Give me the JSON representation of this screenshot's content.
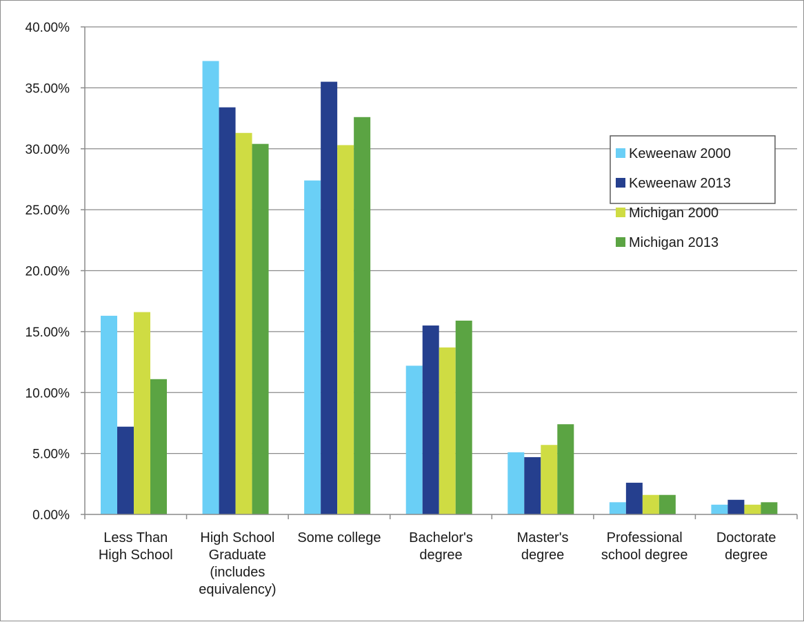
{
  "chart_data": {
    "type": "bar",
    "title": "",
    "xlabel": "",
    "ylabel": "",
    "categories": [
      [
        "Less Than",
        "High School"
      ],
      [
        "High School",
        "Graduate",
        "(includes",
        "equivalency)"
      ],
      [
        "Some college"
      ],
      [
        "Bachelor's",
        "degree"
      ],
      [
        "Master's",
        "degree"
      ],
      [
        "Professional",
        "school degree"
      ],
      [
        "Doctorate",
        "degree"
      ]
    ],
    "series": [
      {
        "name": "Keweenaw 2000",
        "color": "#6acff6",
        "values": [
          16.3,
          37.2,
          27.4,
          12.2,
          5.1,
          1.0,
          0.8
        ]
      },
      {
        "name": "Keweenaw 2013",
        "color": "#253f8e",
        "values": [
          7.2,
          33.4,
          35.5,
          15.5,
          4.7,
          2.6,
          1.2
        ]
      },
      {
        "name": "Michigan 2000",
        "color": "#cfdc43",
        "values": [
          16.6,
          31.3,
          30.3,
          13.7,
          5.7,
          1.6,
          0.8
        ]
      },
      {
        "name": "Michigan 2013",
        "color": "#5ba443",
        "values": [
          11.1,
          30.4,
          32.6,
          15.9,
          7.4,
          1.6,
          1.0
        ]
      }
    ],
    "ylim": [
      0,
      40
    ],
    "yticks": [
      0,
      5,
      10,
      15,
      20,
      25,
      30,
      35,
      40
    ],
    "ytick_labels": [
      "0.00%",
      "5.00%",
      "10.00%",
      "15.00%",
      "20.00%",
      "25.00%",
      "30.00%",
      "35.00%",
      "40.00%"
    ],
    "grid": true,
    "legend_position": "right"
  }
}
